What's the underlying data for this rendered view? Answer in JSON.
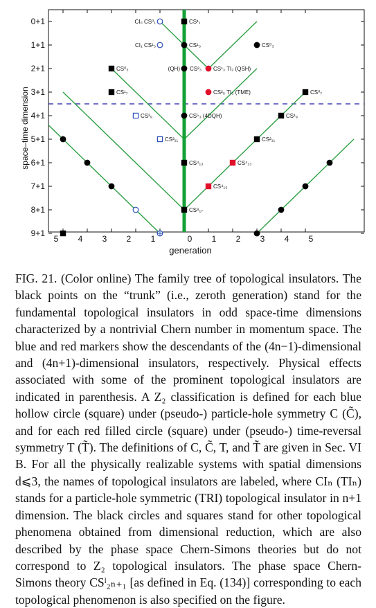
{
  "chart_data": {
    "type": "scatter",
    "xlabel": "generation",
    "ylabel": "space–time dimension",
    "x_ticks_left": [
      "5",
      "4",
      "3",
      "2",
      "1"
    ],
    "x_ticks_right": [
      "0",
      "1",
      "2",
      "3",
      "4",
      "5"
    ],
    "y_ticks": [
      "0+1",
      "1+1",
      "2+1",
      "3+1",
      "4+1",
      "5+1",
      "6+1",
      "7+1",
      "8+1",
      "9+1"
    ],
    "grid": false,
    "dashed_line_between_rows": [
      3,
      4
    ],
    "colors": {
      "line": "#2ea043",
      "trunk": "#13a136",
      "blue": "#2a4fb8",
      "red": "#e0102a",
      "black": "#000000",
      "dash": "#1a1aa8"
    },
    "points": [
      {
        "gen": 0,
        "dim": 0,
        "shape": "square",
        "style": "black",
        "label": "CS¹₁"
      },
      {
        "gen": 0,
        "dim": 1,
        "shape": "circle",
        "style": "black",
        "label": "CS¹₃"
      },
      {
        "gen": 0,
        "dim": 2,
        "shape": "circle",
        "style": "black",
        "label": "CS²₃"
      },
      {
        "gen": 0,
        "dim": 4,
        "shape": "circle",
        "style": "black",
        "label": "CS⁵₃ (4DQH)"
      },
      {
        "gen": 0,
        "dim": 6,
        "shape": "square",
        "style": "black",
        "label": "CS⁴₁₃"
      },
      {
        "gen": 0,
        "dim": 8,
        "shape": "square",
        "style": "black",
        "label": "CS⁸₁₇"
      },
      {
        "gen": 1,
        "dim": 2,
        "shape": "circle",
        "style": "red",
        "label": "CS¹₃  TI₂ (QSH)"
      },
      {
        "gen": 1,
        "dim": 3,
        "shape": "circle",
        "style": "red",
        "label": "CS²₅  TI₃ (TME)"
      },
      {
        "gen": 1,
        "dim": 7,
        "shape": "square",
        "style": "red",
        "label": "CS⁴₁₅"
      },
      {
        "gen": 2,
        "dim": 6,
        "shape": "square",
        "style": "red",
        "label": "CS⁴₁₃"
      },
      {
        "gen": 3,
        "dim": 1,
        "shape": "circle",
        "style": "black",
        "label": "CS⁰₃"
      },
      {
        "gen": 3,
        "dim": 5,
        "shape": "square",
        "style": "black",
        "label": "CS²₁₁"
      },
      {
        "gen": 4,
        "dim": 4,
        "shape": "square",
        "style": "black",
        "label": "CS¹₉"
      },
      {
        "gen": 5,
        "dim": 3,
        "shape": "square",
        "style": "black",
        "label": "CS⁰₇"
      },
      {
        "gen": -1,
        "dim": 0,
        "shape": "circle",
        "style": "blue-hollow",
        "label": "CI₀  CS⁰₁"
      },
      {
        "gen": -1,
        "dim": 1,
        "shape": "circle",
        "style": "blue-hollow",
        "label": "CI₁  CS¹₃"
      },
      {
        "gen": -1,
        "dim": 5,
        "shape": "square",
        "style": "blue-hollow",
        "label": "CS³₁₁"
      },
      {
        "gen": -2,
        "dim": 4,
        "shape": "square",
        "style": "blue-hollow",
        "label": "CS²₉"
      },
      {
        "gen": -3,
        "dim": 2,
        "shape": "square",
        "style": "black",
        "label": "CS⁰₅"
      },
      {
        "gen": -3,
        "dim": 3,
        "shape": "square",
        "style": "black",
        "label": "CS¹₇"
      },
      {
        "gen": -4,
        "dim": 6,
        "shape": "circle",
        "style": "black",
        "label": ""
      },
      {
        "gen": -5,
        "dim": 5,
        "shape": "circle",
        "style": "black",
        "label": ""
      },
      {
        "gen": -3,
        "dim": 7,
        "shape": "circle",
        "style": "black",
        "label": ""
      },
      {
        "gen": -2,
        "dim": 8,
        "shape": "circle",
        "style": "blue-hollow",
        "label": ""
      },
      {
        "gen": -1,
        "dim": 9,
        "shape": "circle",
        "style": "blue-hollow-cross",
        "label": ""
      },
      {
        "gen": -5,
        "dim": 9,
        "shape": "square",
        "style": "black",
        "label": ""
      },
      {
        "gen": 3,
        "dim": 9,
        "shape": "circle",
        "style": "black",
        "label": ""
      },
      {
        "gen": 4,
        "dim": 8,
        "shape": "circle",
        "style": "black",
        "label": ""
      },
      {
        "gen": 5,
        "dim": 7,
        "shape": "circle",
        "style": "black",
        "label": ""
      },
      {
        "gen": 6,
        "dim": 6,
        "shape": "circle",
        "style": "black",
        "label": ""
      }
    ],
    "lines": [
      [
        [
          -1,
          0
        ],
        [
          1,
          2
        ],
        [
          3,
          0
        ]
      ],
      [
        [
          -3,
          2
        ],
        [
          0,
          5
        ],
        [
          3,
          2
        ]
      ],
      [
        [
          -5,
          3
        ],
        [
          0,
          8
        ]
      ],
      [
        [
          0,
          8
        ],
        [
          5,
          3
        ]
      ],
      [
        [
          -6,
          4
        ],
        [
          -1,
          9
        ]
      ],
      [
        [
          3,
          9
        ],
        [
          7,
          5
        ]
      ]
    ]
  },
  "caption": {
    "p1": "FIG. 21. (Color online) The family tree of topological insulators. The black points on the “trunk” (i.e., zeroth generation) stand for the fundamental topological insulators in odd space-time dimensions characterized by a nontrivial Chern number in momentum space. The blue and red markers show the descendants of the (4n−1)-dimensional and (4n+1)-dimensional insulators, respectively. Physical effects associated with some of the prominent topological insulators are indicated in parenthesis. A Z₂ classification is defined for each blue hollow circle (square) under (pseudo-) particle-hole symmetry C (C̃), and for each red filled circle (square) under (pseudo-) time-reversal symmetry T (T̃). The definitions of C, C̃, T, and T̃ are given in Sec. VI B. For all the physically realizable systems with spatial dimensions d⩽3, the names of topological insulators are labeled, where CIₙ (TIₙ) stands for a particle-hole symmetric (TRI) topological insulator in n+1 dimension. The black circles and squares stand for other topological phenomena obtained from dimensional reduction, which are also described by the phase space Chern-Simons theories but do not correspond to Z₂ topological insulators. The phase space Chern-Simons theory CSˡ₂ₙ₊₁ [as defined in Eq. (134)] corresponding to each topological phenomenon is also specified on the figure."
  }
}
